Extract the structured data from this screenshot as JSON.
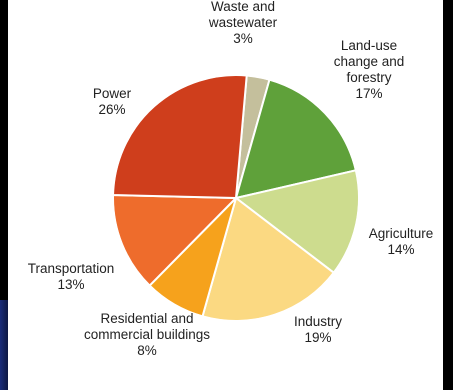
{
  "chart_data": {
    "type": "pie",
    "title": "",
    "slices": [
      {
        "label": "Waste and\nwastewater",
        "value": 3,
        "value_label": "3%",
        "color": "#c4bf9c"
      },
      {
        "label": "Land-use\nchange and\nforestry",
        "value": 17,
        "value_label": "17%",
        "color": "#5fa13a"
      },
      {
        "label": "Agriculture",
        "value": 14,
        "value_label": "14%",
        "color": "#cddc8e"
      },
      {
        "label": "Industry",
        "value": 19,
        "value_label": "19%",
        "color": "#fbd982"
      },
      {
        "label": "Residential and\ncommercial buildings",
        "value": 8,
        "value_label": "8%",
        "color": "#f6a21c"
      },
      {
        "label": "Transportation",
        "value": 13,
        "value_label": "13%",
        "color": "#ee6c2c"
      },
      {
        "label": "Power",
        "value": 26,
        "value_label": "26%",
        "color": "#cf3e1c"
      }
    ]
  }
}
